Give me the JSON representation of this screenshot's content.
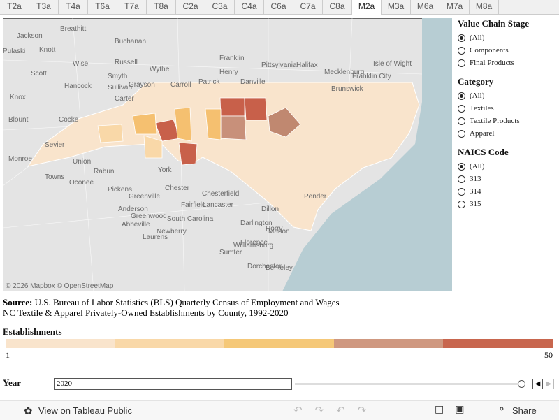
{
  "tabs": [
    "T2a",
    "T3a",
    "T4a",
    "T6a",
    "T7a",
    "T8a",
    "C2a",
    "C3a",
    "C4a",
    "C6a",
    "C7a",
    "C8a",
    "M2a",
    "M3a",
    "M6a",
    "M7a",
    "M8a"
  ],
  "active_tab": "M2a",
  "map": {
    "place_labels": [
      "Jackson",
      "Breathitt",
      "Buchanan",
      "Pulaski",
      "Knott",
      "Russell",
      "Wise",
      "Scott",
      "Smyth",
      "Wythe",
      "Grayson",
      "Carroll",
      "Patrick",
      "Henry",
      "Franklin",
      "Pittsylvania",
      "Halifax",
      "Danville",
      "Mecklenburg",
      "Brunswick",
      "Franklin City",
      "Isle of Wight",
      "Hancock",
      "Sullivan",
      "Carter",
      "Knox",
      "Cocke",
      "Sevier",
      "Blount",
      "Monroe",
      "Union",
      "Towns",
      "Oconee",
      "Rabun",
      "Pickens",
      "Anderson",
      "Greenville",
      "Greenwood",
      "Abbeville",
      "Laurens",
      "Newberry",
      "Fairfield",
      "Chester",
      "York",
      "Lancaster",
      "Chesterfield",
      "Darlington",
      "Florence",
      "Marion",
      "Horry",
      "Dillon",
      "Sumter",
      "Williamsburg",
      "Berkeley",
      "Dorchester",
      "South Carolina",
      "Pender"
    ],
    "attribution": "© 2026 Mapbox © OpenStreetMap"
  },
  "filters": [
    {
      "title": "Value Chain Stage",
      "options": [
        "(All)",
        "Components",
        "Final Products"
      ],
      "selected": "(All)"
    },
    {
      "title": "Category",
      "options": [
        "(All)",
        "Textiles",
        "Textile Products",
        "Apparel"
      ],
      "selected": "(All)"
    },
    {
      "title": "NAICS Code",
      "options": [
        "(All)",
        "313",
        "314",
        "315"
      ],
      "selected": "(All)"
    }
  ],
  "source": {
    "label": "Source:",
    "text": "U.S. Bureau of Labor Statistics (BLS) Quarterly Census of Employment and Wages"
  },
  "subtitle": "NC Textile & Apparel Privately-Owned Establishments by County, 1992-2020",
  "legend": {
    "title": "Establishments",
    "min": 1,
    "max": 50
  },
  "year": {
    "label": "Year",
    "value": "2020"
  },
  "footer": {
    "view_link": "View on Tableau Public",
    "share": "Share"
  }
}
